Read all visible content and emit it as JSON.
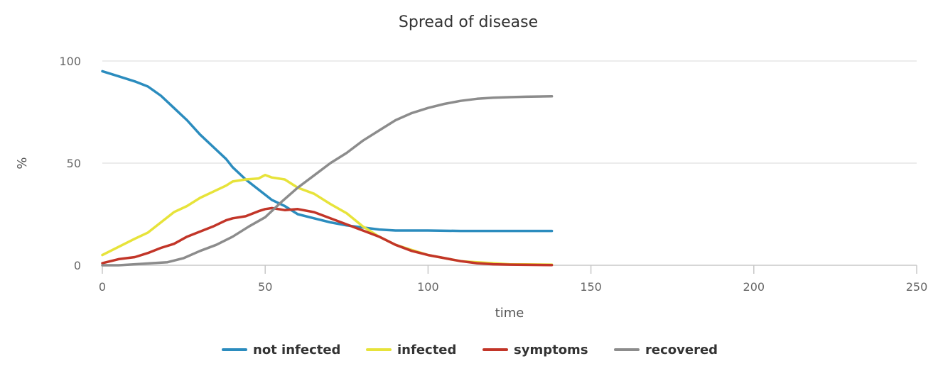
{
  "chart_data": {
    "type": "line",
    "title": "Spread of disease",
    "xlabel": "time",
    "ylabel": "%",
    "xlim": [
      0,
      250
    ],
    "ylim": [
      0,
      100
    ],
    "xticks": [
      0,
      50,
      100,
      150,
      200,
      250
    ],
    "yticks": [
      0,
      50,
      100
    ],
    "grid": "horizontal",
    "legend": "bottom-center",
    "series": [
      {
        "name": "not infected",
        "color": "#2b8cbe",
        "points": [
          [
            0,
            95
          ],
          [
            5,
            92.5
          ],
          [
            10,
            90
          ],
          [
            14,
            87.5
          ],
          [
            18,
            83
          ],
          [
            22,
            77
          ],
          [
            26,
            71
          ],
          [
            30,
            64
          ],
          [
            34,
            58
          ],
          [
            38,
            52
          ],
          [
            40,
            48
          ],
          [
            44,
            42
          ],
          [
            48,
            37
          ],
          [
            52,
            32
          ],
          [
            56,
            29
          ],
          [
            60,
            25
          ],
          [
            65,
            23
          ],
          [
            70,
            21
          ],
          [
            75,
            19.5
          ],
          [
            80,
            18.5
          ],
          [
            85,
            17.5
          ],
          [
            90,
            17
          ],
          [
            95,
            17
          ],
          [
            100,
            17
          ],
          [
            110,
            16.8
          ],
          [
            120,
            16.8
          ],
          [
            130,
            16.8
          ],
          [
            138,
            16.8
          ]
        ]
      },
      {
        "name": "infected",
        "color": "#e7e33a",
        "points": [
          [
            0,
            5
          ],
          [
            5,
            9
          ],
          [
            10,
            13
          ],
          [
            14,
            16
          ],
          [
            18,
            21
          ],
          [
            22,
            26
          ],
          [
            26,
            29
          ],
          [
            30,
            33
          ],
          [
            34,
            36
          ],
          [
            38,
            39
          ],
          [
            40,
            41
          ],
          [
            44,
            42
          ],
          [
            48,
            42.5
          ],
          [
            50,
            44.2
          ],
          [
            52,
            43
          ],
          [
            56,
            42
          ],
          [
            60,
            38
          ],
          [
            65,
            35
          ],
          [
            70,
            30
          ],
          [
            75,
            25.5
          ],
          [
            80,
            19
          ],
          [
            85,
            14
          ],
          [
            90,
            10
          ],
          [
            95,
            7.5
          ],
          [
            100,
            5
          ],
          [
            105,
            3.5
          ],
          [
            110,
            2
          ],
          [
            115,
            1.5
          ],
          [
            120,
            1
          ],
          [
            125,
            0.5
          ],
          [
            130,
            0.4
          ],
          [
            138,
            0.3
          ]
        ]
      },
      {
        "name": "symptoms",
        "color": "#c23528",
        "points": [
          [
            0,
            1
          ],
          [
            5,
            3
          ],
          [
            10,
            4
          ],
          [
            14,
            6
          ],
          [
            18,
            8.5
          ],
          [
            22,
            10.5
          ],
          [
            26,
            14
          ],
          [
            30,
            16.5
          ],
          [
            34,
            19
          ],
          [
            38,
            22
          ],
          [
            40,
            23
          ],
          [
            44,
            24
          ],
          [
            48,
            26.5
          ],
          [
            50,
            27.5
          ],
          [
            52,
            28
          ],
          [
            56,
            27
          ],
          [
            60,
            27.5
          ],
          [
            65,
            26
          ],
          [
            70,
            23
          ],
          [
            75,
            20
          ],
          [
            80,
            17
          ],
          [
            85,
            14
          ],
          [
            90,
            10
          ],
          [
            95,
            7
          ],
          [
            100,
            5
          ],
          [
            105,
            3.5
          ],
          [
            110,
            2
          ],
          [
            115,
            1
          ],
          [
            120,
            0.5
          ],
          [
            125,
            0.3
          ],
          [
            130,
            0.2
          ],
          [
            138,
            0.1
          ]
        ]
      },
      {
        "name": "recovered",
        "color": "#8c8c8c",
        "points": [
          [
            0,
            0
          ],
          [
            5,
            0
          ],
          [
            10,
            0.5
          ],
          [
            15,
            1
          ],
          [
            20,
            1.5
          ],
          [
            25,
            3.5
          ],
          [
            30,
            7
          ],
          [
            35,
            10
          ],
          [
            40,
            14
          ],
          [
            45,
            19
          ],
          [
            50,
            23.5
          ],
          [
            55,
            31
          ],
          [
            60,
            38
          ],
          [
            65,
            44
          ],
          [
            70,
            50
          ],
          [
            75,
            55
          ],
          [
            80,
            61
          ],
          [
            85,
            66
          ],
          [
            90,
            71
          ],
          [
            95,
            74.5
          ],
          [
            100,
            77
          ],
          [
            105,
            79
          ],
          [
            110,
            80.5
          ],
          [
            115,
            81.5
          ],
          [
            120,
            82
          ],
          [
            125,
            82.3
          ],
          [
            130,
            82.5
          ],
          [
            138,
            82.7
          ]
        ]
      }
    ]
  }
}
